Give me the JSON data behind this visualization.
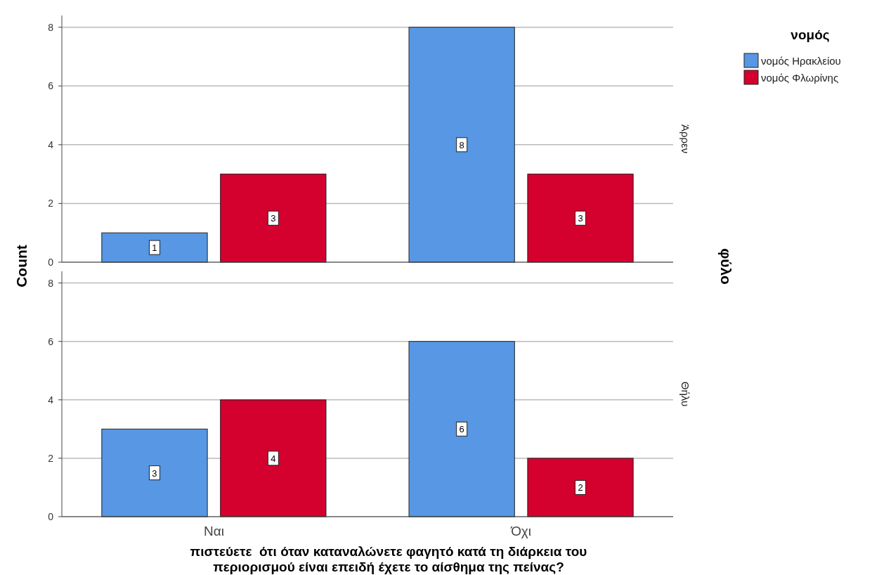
{
  "chart_data": [
    {
      "type": "bar",
      "categories": [
        null,
        null
      ],
      "series": [
        {
          "name": "νομός Ηρακλείου",
          "color": "#5797e3",
          "values": [
            1,
            8
          ]
        },
        {
          "name": "νομός Φλωρίνης",
          "color": "#d4002e",
          "values": [
            3,
            3
          ]
        }
      ],
      "ylim": [
        0,
        8.4
      ],
      "yticks": [
        0,
        2,
        4,
        6,
        8
      ],
      "ylabel": "Count",
      "tick_labels": "y",
      "grid": "y",
      "data_labels": true,
      "legend": "right",
      "legend_title": "νομός",
      "annotations": [
        "Άρρεν",
        "φύλο"
      ]
    },
    {
      "type": "bar",
      "annotations": [
        "Θήλυ"
      ],
      "categories": [
        "Ναι",
        "Όχι"
      ],
      "series": [
        {
          "color": "#5797e3",
          "values": [
            3,
            6
          ]
        },
        {
          "color": "#d4002e",
          "values": [
            4,
            2
          ]
        }
      ],
      "ylim": [
        0,
        8.4
      ],
      "yticks": [
        0,
        2,
        4,
        6,
        8
      ],
      "grid": "y",
      "data_labels": true,
      "xlabel": "πιστεύετε  ότι όταν καταναλώνετε φαγητό κατά τη διάρκεια του περιορισμού είναι επειδή έχετε το αίσθημα της πείνας?"
    }
  ]
}
